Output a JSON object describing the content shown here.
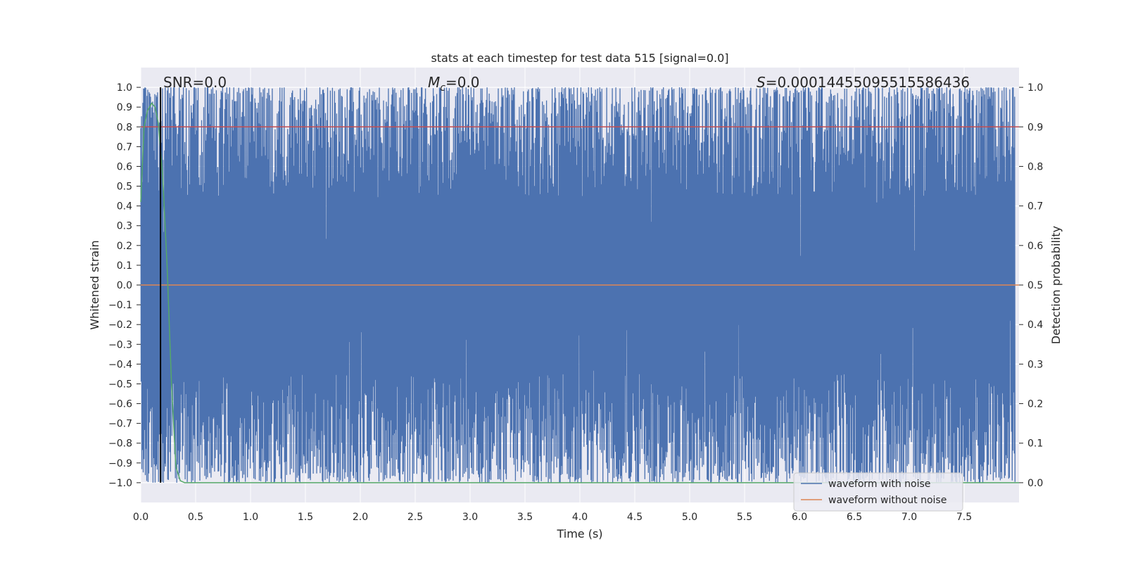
{
  "chart_data": {
    "type": "line",
    "title": "stats at each timestep for test data 515 [signal=0.0]",
    "xlabel": "Time (s)",
    "ylabel": "Whitened strain",
    "y2label": "Detection probability",
    "xlim": [
      0.0,
      8.0
    ],
    "ylim": [
      -1.1,
      1.1
    ],
    "y2lim": [
      -0.05,
      1.05
    ],
    "x_ticks": [
      "0.0",
      "0.5",
      "1.0",
      "1.5",
      "2.0",
      "2.5",
      "3.0",
      "3.5",
      "4.0",
      "4.5",
      "5.0",
      "5.5",
      "6.0",
      "6.5",
      "7.0",
      "7.5"
    ],
    "y_ticks": [
      "1.0",
      "0.9",
      "0.8",
      "0.7",
      "0.6",
      "0.5",
      "0.4",
      "0.3",
      "0.2",
      "0.1",
      "0.0",
      "−0.1",
      "−0.2",
      "−0.3",
      "−0.4",
      "−0.5",
      "−0.6",
      "−0.7",
      "−0.8",
      "−0.9",
      "−1.0"
    ],
    "y2_ticks": [
      "1.0",
      "0.9",
      "0.8",
      "0.7",
      "0.6",
      "0.5",
      "0.4",
      "0.3",
      "0.2",
      "0.1",
      "0.0"
    ],
    "grid": true,
    "legend_position": "lower-right",
    "annotations": {
      "snr": "SNR=0.0",
      "mc_symbol": "M",
      "mc_sub": "c",
      "mc_value": "=0.0",
      "s_symbol": "S",
      "s_value": "=0.00014455095515586436"
    },
    "series": [
      {
        "name": "waveform with noise",
        "color": "#4c72b0",
        "description_values": "dense noise spanning approximately -1.0 to 1.0 over 0–8 s"
      },
      {
        "name": "waveform without noise",
        "color": "#dd8452",
        "values_x": [
          0.0,
          8.0
        ],
        "values_y": [
          0.0,
          0.0
        ]
      },
      {
        "name": "",
        "color": "#c44e52",
        "values_x": [
          0.0,
          8.0
        ],
        "values_y": [
          0.8,
          0.8
        ]
      },
      {
        "name": "",
        "color": "#55a868",
        "values_x": [
          0.0,
          0.03,
          0.06,
          0.1,
          0.13,
          0.16,
          0.2,
          0.24,
          0.28,
          0.32,
          0.36,
          0.4,
          8.0
        ],
        "values_y": [
          0.42,
          0.8,
          0.88,
          0.92,
          0.9,
          0.82,
          0.55,
          0.1,
          -0.5,
          -0.92,
          -0.99,
          -1.0,
          -1.0
        ]
      }
    ],
    "vline_x": 0.18,
    "vline_color": "#000000"
  }
}
